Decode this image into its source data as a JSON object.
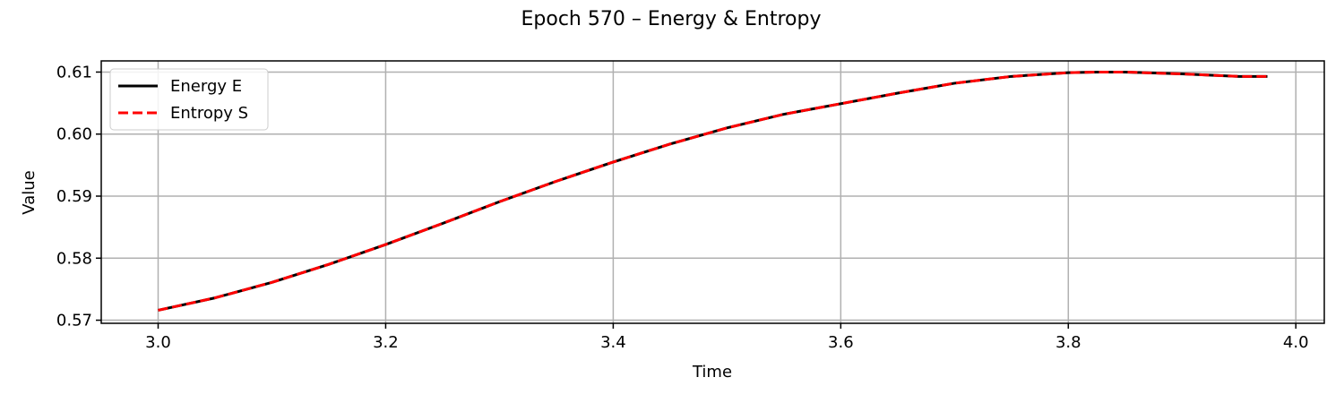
{
  "chart_data": {
    "type": "line",
    "title": "Epoch 570 – Energy & Entropy",
    "xlabel": "Time",
    "ylabel": "Value",
    "xlim": [
      2.95,
      4.025
    ],
    "ylim": [
      0.5695,
      0.6118
    ],
    "xticks": [
      3.0,
      3.2,
      3.4,
      3.6,
      3.8,
      4.0
    ],
    "xtick_labels": [
      "3.0",
      "3.2",
      "3.4",
      "3.6",
      "3.8",
      "4.0"
    ],
    "yticks": [
      0.57,
      0.58,
      0.59,
      0.6,
      0.61
    ],
    "ytick_labels": [
      "0.57",
      "0.58",
      "0.59",
      "0.60",
      "0.61"
    ],
    "grid": true,
    "legend_position": "top-left",
    "series": [
      {
        "name": "Energy E",
        "color": "#000000",
        "style": "solid",
        "x": [
          3.0,
          3.05,
          3.1,
          3.15,
          3.2,
          3.25,
          3.3,
          3.35,
          3.4,
          3.45,
          3.5,
          3.55,
          3.6,
          3.65,
          3.7,
          3.75,
          3.8,
          3.825,
          3.85,
          3.9,
          3.95,
          3.975
        ],
        "y": [
          0.5716,
          0.5736,
          0.5761,
          0.579,
          0.5822,
          0.5856,
          0.5891,
          0.5924,
          0.5955,
          0.5984,
          0.601,
          0.6032,
          0.6049,
          0.6066,
          0.6082,
          0.6093,
          0.6099,
          0.61,
          0.61,
          0.6097,
          0.6093,
          0.6093
        ]
      },
      {
        "name": "Entropy S",
        "color": "#ff0000",
        "style": "dashed",
        "x": [
          3.0,
          3.05,
          3.1,
          3.15,
          3.2,
          3.25,
          3.3,
          3.35,
          3.4,
          3.45,
          3.5,
          3.55,
          3.6,
          3.65,
          3.7,
          3.75,
          3.8,
          3.825,
          3.85,
          3.9,
          3.95,
          3.975
        ],
        "y": [
          0.5716,
          0.5736,
          0.5761,
          0.579,
          0.5822,
          0.5856,
          0.5891,
          0.5924,
          0.5955,
          0.5984,
          0.601,
          0.6032,
          0.6049,
          0.6066,
          0.6082,
          0.6093,
          0.6099,
          0.61,
          0.61,
          0.6097,
          0.6093,
          0.6093
        ]
      }
    ]
  }
}
